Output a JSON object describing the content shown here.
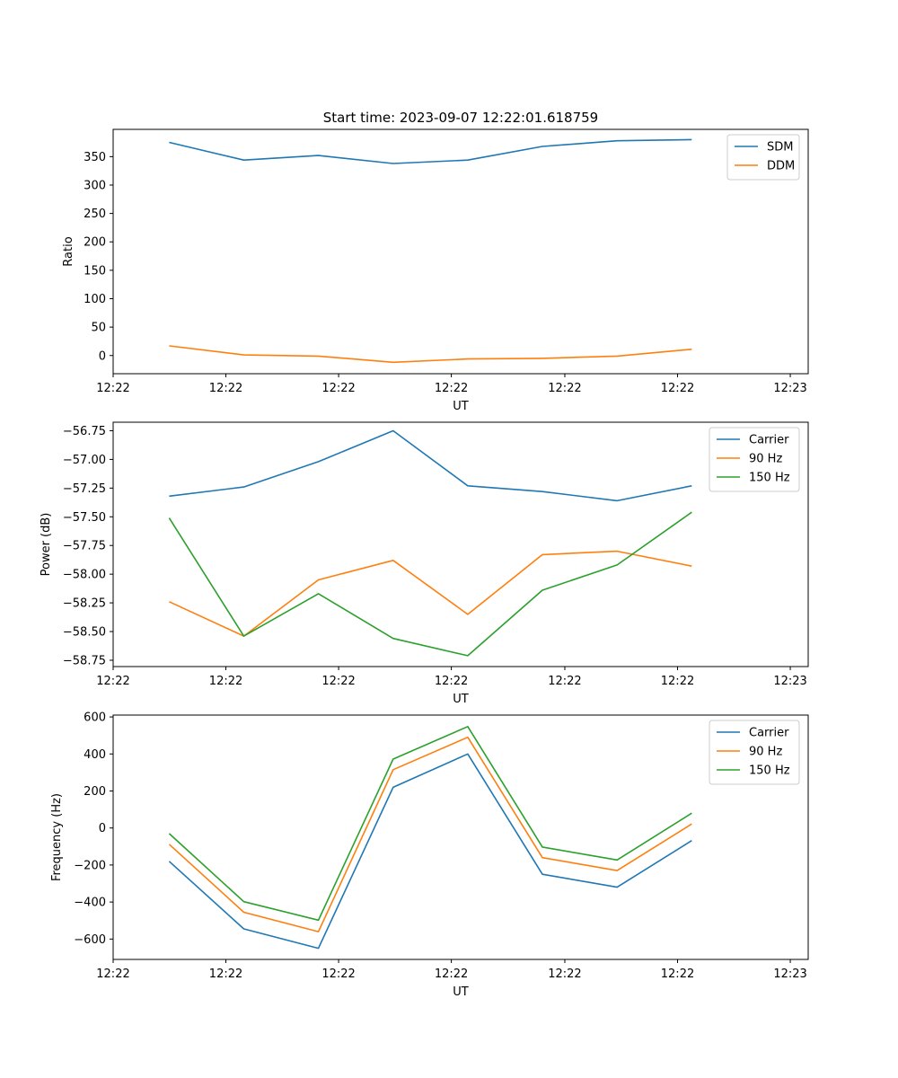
{
  "figure_title": "Start time: 2023-09-07 12:22:01.618759",
  "chart_data": [
    {
      "type": "line",
      "title": "Start time: 2023-09-07 12:22:01.618759",
      "xlabel": "UT",
      "ylabel": "Ratio",
      "xlim": [
        -0.75,
        8.56
      ],
      "ylim": [
        -32,
        398
      ],
      "x": [
        0,
        1,
        2,
        3,
        4,
        5,
        6,
        7
      ],
      "x_tick_values": [
        -0.75,
        0.76,
        2.27,
        3.78,
        5.3,
        6.81,
        8.32
      ],
      "x_tick_labels": [
        "12:22",
        "12:22",
        "12:22",
        "12:22",
        "12:22",
        "12:22",
        "12:23"
      ],
      "y_ticks": [
        0,
        50,
        100,
        150,
        200,
        250,
        300,
        350
      ],
      "y_tick_labels": [
        "0",
        "50",
        "100",
        "150",
        "200",
        "250",
        "300",
        "350"
      ],
      "legend_position": "top-right",
      "series": [
        {
          "name": "SDM",
          "color": "#1f77b4",
          "values": [
            375,
            344,
            352,
            338,
            344,
            368,
            378,
            380
          ]
        },
        {
          "name": "DDM",
          "color": "#ff7f0e",
          "values": [
            17,
            1,
            -1,
            -12,
            -6,
            -5,
            -1,
            11
          ]
        }
      ]
    },
    {
      "type": "line",
      "title": "",
      "xlabel": "UT",
      "ylabel": "Power (dB)",
      "xlim": [
        -0.75,
        8.56
      ],
      "ylim": [
        -58.805,
        -56.676
      ],
      "x": [
        0,
        1,
        2,
        3,
        4,
        5,
        6,
        7
      ],
      "x_tick_values": [
        -0.75,
        0.76,
        2.27,
        3.78,
        5.3,
        6.81,
        8.32
      ],
      "x_tick_labels": [
        "12:22",
        "12:22",
        "12:22",
        "12:22",
        "12:22",
        "12:22",
        "12:23"
      ],
      "y_ticks": [
        -58.75,
        -58.5,
        -58.25,
        -58.0,
        -57.75,
        -57.5,
        -57.25,
        -57.0,
        -56.75
      ],
      "y_tick_labels": [
        "−58.75",
        "−58.50",
        "−58.25",
        "−58.00",
        "−57.75",
        "−57.50",
        "−57.25",
        "−57.00",
        "−56.75"
      ],
      "legend_position": "top-right",
      "series": [
        {
          "name": "Carrier",
          "color": "#1f77b4",
          "values": [
            -57.32,
            -57.24,
            -57.02,
            -56.75,
            -57.23,
            -57.28,
            -57.36,
            -57.23
          ]
        },
        {
          "name": "90 Hz",
          "color": "#ff7f0e",
          "values": [
            -58.24,
            -58.54,
            -58.05,
            -57.88,
            -58.35,
            -57.83,
            -57.8,
            -57.93
          ]
        },
        {
          "name": "150 Hz",
          "color": "#2ca02c",
          "values": [
            -57.51,
            -58.54,
            -58.17,
            -58.56,
            -58.71,
            -58.14,
            -57.92,
            -57.46
          ]
        }
      ]
    },
    {
      "type": "line",
      "title": "",
      "xlabel": "UT",
      "ylabel": "Frequency (Hz)",
      "xlim": [
        -0.75,
        8.56
      ],
      "ylim": [
        -710,
        610
      ],
      "x": [
        0,
        1,
        2,
        3,
        4,
        5,
        6,
        7
      ],
      "x_tick_values": [
        -0.75,
        0.76,
        2.27,
        3.78,
        5.3,
        6.81,
        8.32
      ],
      "x_tick_labels": [
        "12:22",
        "12:22",
        "12:22",
        "12:22",
        "12:22",
        "12:22",
        "12:23"
      ],
      "y_ticks": [
        -600,
        -400,
        -200,
        0,
        200,
        400,
        600
      ],
      "y_tick_labels": [
        "−600",
        "−400",
        "−200",
        "0",
        "200",
        "400",
        "600"
      ],
      "legend_position": "top-right",
      "series": [
        {
          "name": "Carrier",
          "color": "#1f77b4",
          "values": [
            -180,
            -545,
            -650,
            220,
            400,
            -250,
            -320,
            -68
          ]
        },
        {
          "name": "90 Hz",
          "color": "#ff7f0e",
          "values": [
            -88,
            -455,
            -560,
            315,
            490,
            -160,
            -230,
            22
          ]
        },
        {
          "name": "150 Hz",
          "color": "#2ca02c",
          "values": [
            -30,
            -398,
            -498,
            372,
            548,
            -103,
            -173,
            80
          ]
        }
      ]
    }
  ]
}
